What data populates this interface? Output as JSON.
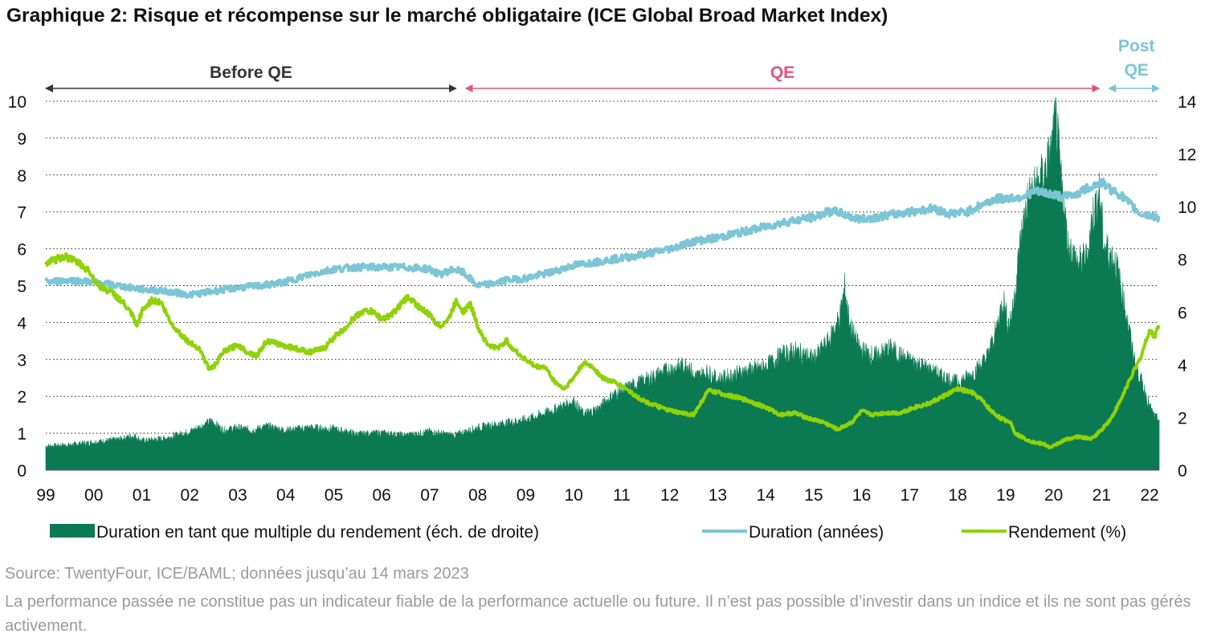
{
  "title": "Graphique 2: Risque et récompense sur le marché obligataire (ICE Global Broad Market Index)",
  "source": "Source: TwentyFour, ICE/BAML; données jusqu’au 14 mars 2023",
  "disclaimer": "La performance passée ne constitue pas un indicateur fiable de la performance actuelle ou future. Il n’est pas possible d’investir dans un indice et ils ne sont pas gérés activement.",
  "colors": {
    "area": "#0b7a52",
    "duration": "#7cc5d6",
    "yield": "#8fd20a",
    "before": "#333333",
    "qe": "#e2517c",
    "post": "#7cc5d6"
  },
  "phases": [
    {
      "label": "Before QE",
      "color": "#333333",
      "from": 1999.0,
      "to": 2007.55
    },
    {
      "label": "QE",
      "color": "#e2517c",
      "from": 2007.75,
      "to": 2020.95
    },
    {
      "label": "Post QE",
      "color": "#7cc5d6",
      "from": 2021.15,
      "to": 2022.2
    }
  ],
  "chart_data": {
    "type": "line",
    "x_tick_labels": [
      "99",
      "00",
      "01",
      "02",
      "03",
      "04",
      "05",
      "06",
      "07",
      "08",
      "09",
      "10",
      "11",
      "12",
      "13",
      "14",
      "15",
      "16",
      "17",
      "18",
      "19",
      "20",
      "21",
      "22"
    ],
    "x_tick_values": [
      1999,
      2000,
      2001,
      2002,
      2003,
      2004,
      2005,
      2006,
      2007,
      2008,
      2009,
      2010,
      2011,
      2012,
      2013,
      2014,
      2015,
      2016,
      2017,
      2018,
      2019,
      2020,
      2021,
      2022
    ],
    "xlim": [
      1999.0,
      2022.2
    ],
    "y_left": {
      "ylim": [
        0,
        10
      ],
      "ticks": [
        0,
        1,
        2,
        3,
        4,
        5,
        6,
        7,
        8,
        9,
        10
      ]
    },
    "y_right": {
      "ylim": [
        0,
        14
      ],
      "ticks": [
        0,
        2,
        4,
        6,
        8,
        10,
        12,
        14
      ]
    },
    "grid": "horizontal dotted",
    "legend_position": "bottom",
    "series": [
      {
        "name": "Duration en tant que multiple du rendement (éch. de droite)",
        "type": "area",
        "axis": "right",
        "points": [
          [
            1999.0,
            0.9
          ],
          [
            1999.5,
            0.95
          ],
          [
            2000.0,
            1.05
          ],
          [
            2000.5,
            1.15
          ],
          [
            2000.85,
            1.3
          ],
          [
            2001.0,
            1.1
          ],
          [
            2001.5,
            1.2
          ],
          [
            2002.0,
            1.45
          ],
          [
            2002.3,
            1.7
          ],
          [
            2002.45,
            1.85
          ],
          [
            2002.7,
            1.5
          ],
          [
            2003.0,
            1.6
          ],
          [
            2003.3,
            1.5
          ],
          [
            2003.6,
            1.65
          ],
          [
            2004.0,
            1.5
          ],
          [
            2004.5,
            1.6
          ],
          [
            2005.0,
            1.55
          ],
          [
            2005.5,
            1.35
          ],
          [
            2006.0,
            1.4
          ],
          [
            2006.5,
            1.3
          ],
          [
            2007.0,
            1.45
          ],
          [
            2007.5,
            1.3
          ],
          [
            2008.0,
            1.6
          ],
          [
            2008.5,
            1.75
          ],
          [
            2009.0,
            1.9
          ],
          [
            2009.5,
            2.2
          ],
          [
            2010.0,
            2.6
          ],
          [
            2010.2,
            2.1
          ],
          [
            2010.5,
            2.3
          ],
          [
            2010.8,
            2.8
          ],
          [
            2011.0,
            3.0
          ],
          [
            2011.5,
            3.4
          ],
          [
            2012.0,
            3.8
          ],
          [
            2012.4,
            4.0
          ],
          [
            2012.5,
            3.5
          ],
          [
            2012.8,
            3.7
          ],
          [
            2013.0,
            3.4
          ],
          [
            2013.5,
            3.7
          ],
          [
            2014.0,
            3.9
          ],
          [
            2014.3,
            4.3
          ],
          [
            2014.6,
            4.5
          ],
          [
            2015.0,
            4.2
          ],
          [
            2015.3,
            4.8
          ],
          [
            2015.55,
            5.8
          ],
          [
            2015.65,
            6.9
          ],
          [
            2015.75,
            5.5
          ],
          [
            2015.9,
            4.8
          ],
          [
            2016.0,
            4.5
          ],
          [
            2016.3,
            4.3
          ],
          [
            2016.6,
            4.6
          ],
          [
            2016.9,
            4.2
          ],
          [
            2017.2,
            4.0
          ],
          [
            2017.6,
            3.6
          ],
          [
            2018.0,
            3.3
          ],
          [
            2018.3,
            3.6
          ],
          [
            2018.6,
            4.2
          ],
          [
            2018.8,
            5.2
          ],
          [
            2018.95,
            6.5
          ],
          [
            2019.05,
            5.5
          ],
          [
            2019.15,
            6.0
          ],
          [
            2019.3,
            8.5
          ],
          [
            2019.45,
            10.2
          ],
          [
            2019.6,
            10.6
          ],
          [
            2019.8,
            11.2
          ],
          [
            2019.95,
            12.0
          ],
          [
            2020.05,
            13.3
          ],
          [
            2020.15,
            11.0
          ],
          [
            2020.3,
            8.5
          ],
          [
            2020.5,
            7.8
          ],
          [
            2020.7,
            8.0
          ],
          [
            2020.8,
            9.5
          ],
          [
            2020.95,
            10.5
          ],
          [
            2021.05,
            8.5
          ],
          [
            2021.3,
            7.8
          ],
          [
            2021.5,
            6.0
          ],
          [
            2021.7,
            4.0
          ],
          [
            2021.9,
            3.0
          ],
          [
            2022.0,
            2.4
          ],
          [
            2022.1,
            2.0
          ],
          [
            2022.2,
            1.9
          ]
        ]
      },
      {
        "name": "Duration (années)",
        "type": "line",
        "axis": "left",
        "points": [
          [
            1999.0,
            5.1
          ],
          [
            1999.5,
            5.15
          ],
          [
            2000.0,
            5.1
          ],
          [
            2000.5,
            5.0
          ],
          [
            2001.0,
            4.9
          ],
          [
            2001.5,
            4.85
          ],
          [
            2002.0,
            4.75
          ],
          [
            2002.5,
            4.85
          ],
          [
            2003.0,
            4.95
          ],
          [
            2003.5,
            5.0
          ],
          [
            2004.0,
            5.1
          ],
          [
            2004.5,
            5.3
          ],
          [
            2005.0,
            5.45
          ],
          [
            2005.5,
            5.5
          ],
          [
            2006.0,
            5.5
          ],
          [
            2006.5,
            5.5
          ],
          [
            2007.0,
            5.45
          ],
          [
            2007.2,
            5.3
          ],
          [
            2007.5,
            5.45
          ],
          [
            2007.7,
            5.35
          ],
          [
            2008.0,
            5.0
          ],
          [
            2008.3,
            5.05
          ],
          [
            2008.6,
            5.15
          ],
          [
            2009.0,
            5.2
          ],
          [
            2009.5,
            5.35
          ],
          [
            2010.0,
            5.55
          ],
          [
            2010.5,
            5.65
          ],
          [
            2011.0,
            5.75
          ],
          [
            2011.5,
            5.85
          ],
          [
            2012.0,
            6.0
          ],
          [
            2012.5,
            6.2
          ],
          [
            2013.0,
            6.3
          ],
          [
            2013.5,
            6.45
          ],
          [
            2014.0,
            6.6
          ],
          [
            2014.5,
            6.75
          ],
          [
            2015.0,
            6.85
          ],
          [
            2015.3,
            7.0
          ],
          [
            2015.5,
            7.0
          ],
          [
            2015.8,
            6.85
          ],
          [
            2016.0,
            6.8
          ],
          [
            2016.5,
            6.9
          ],
          [
            2017.0,
            7.0
          ],
          [
            2017.5,
            7.1
          ],
          [
            2017.8,
            6.95
          ],
          [
            2018.2,
            7.0
          ],
          [
            2018.5,
            7.2
          ],
          [
            2018.8,
            7.35
          ],
          [
            2019.3,
            7.4
          ],
          [
            2019.6,
            7.55
          ],
          [
            2019.9,
            7.5
          ],
          [
            2020.2,
            7.4
          ],
          [
            2020.5,
            7.5
          ],
          [
            2020.8,
            7.7
          ],
          [
            2021.0,
            7.8
          ],
          [
            2021.2,
            7.6
          ],
          [
            2021.4,
            7.45
          ],
          [
            2021.6,
            7.2
          ],
          [
            2021.8,
            6.95
          ],
          [
            2022.0,
            6.9
          ],
          [
            2022.2,
            6.85
          ]
        ]
      },
      {
        "name": "Rendement (%)",
        "type": "line",
        "axis": "left",
        "points": [
          [
            1999.0,
            5.6
          ],
          [
            1999.2,
            5.7
          ],
          [
            1999.4,
            5.8
          ],
          [
            1999.7,
            5.6
          ],
          [
            1999.9,
            5.4
          ],
          [
            2000.1,
            5.0
          ],
          [
            2000.4,
            4.8
          ],
          [
            2000.6,
            4.55
          ],
          [
            2000.8,
            4.2
          ],
          [
            2000.9,
            3.9
          ],
          [
            2001.0,
            4.3
          ],
          [
            2001.2,
            4.6
          ],
          [
            2001.4,
            4.55
          ],
          [
            2001.6,
            4.0
          ],
          [
            2001.8,
            3.7
          ],
          [
            2002.0,
            3.45
          ],
          [
            2002.2,
            3.3
          ],
          [
            2002.4,
            2.75
          ],
          [
            2002.5,
            2.8
          ],
          [
            2002.7,
            3.2
          ],
          [
            2003.0,
            3.4
          ],
          [
            2003.2,
            3.2
          ],
          [
            2003.4,
            3.1
          ],
          [
            2003.6,
            3.5
          ],
          [
            2003.9,
            3.4
          ],
          [
            2004.2,
            3.3
          ],
          [
            2004.5,
            3.2
          ],
          [
            2004.8,
            3.3
          ],
          [
            2005.0,
            3.6
          ],
          [
            2005.2,
            3.8
          ],
          [
            2005.4,
            4.1
          ],
          [
            2005.6,
            4.3
          ],
          [
            2005.8,
            4.3
          ],
          [
            2006.0,
            4.1
          ],
          [
            2006.2,
            4.2
          ],
          [
            2006.4,
            4.5
          ],
          [
            2006.55,
            4.7
          ],
          [
            2006.8,
            4.4
          ],
          [
            2007.0,
            4.2
          ],
          [
            2007.2,
            3.9
          ],
          [
            2007.4,
            4.1
          ],
          [
            2007.55,
            4.6
          ],
          [
            2007.7,
            4.3
          ],
          [
            2007.85,
            4.5
          ],
          [
            2008.0,
            3.9
          ],
          [
            2008.2,
            3.4
          ],
          [
            2008.4,
            3.3
          ],
          [
            2008.6,
            3.5
          ],
          [
            2008.8,
            3.2
          ],
          [
            2009.0,
            3.0
          ],
          [
            2009.2,
            2.8
          ],
          [
            2009.4,
            2.8
          ],
          [
            2009.6,
            2.4
          ],
          [
            2009.8,
            2.2
          ],
          [
            2010.0,
            2.5
          ],
          [
            2010.2,
            2.9
          ],
          [
            2010.4,
            2.8
          ],
          [
            2010.6,
            2.5
          ],
          [
            2010.9,
            2.35
          ],
          [
            2011.1,
            2.2
          ],
          [
            2011.3,
            2.0
          ],
          [
            2011.5,
            1.85
          ],
          [
            2011.7,
            1.75
          ],
          [
            2011.9,
            1.65
          ],
          [
            2012.2,
            1.55
          ],
          [
            2012.5,
            1.5
          ],
          [
            2012.8,
            2.15
          ],
          [
            2013.0,
            2.1
          ],
          [
            2013.3,
            2.0
          ],
          [
            2013.6,
            1.9
          ],
          [
            2014.0,
            1.7
          ],
          [
            2014.3,
            1.5
          ],
          [
            2014.6,
            1.55
          ],
          [
            2014.9,
            1.4
          ],
          [
            2015.2,
            1.3
          ],
          [
            2015.5,
            1.1
          ],
          [
            2015.8,
            1.3
          ],
          [
            2016.0,
            1.6
          ],
          [
            2016.2,
            1.5
          ],
          [
            2016.5,
            1.55
          ],
          [
            2016.8,
            1.55
          ],
          [
            2017.1,
            1.7
          ],
          [
            2017.4,
            1.8
          ],
          [
            2017.7,
            2.0
          ],
          [
            2018.0,
            2.2
          ],
          [
            2018.3,
            2.1
          ],
          [
            2018.5,
            1.9
          ],
          [
            2018.7,
            1.6
          ],
          [
            2018.9,
            1.4
          ],
          [
            2019.1,
            1.3
          ],
          [
            2019.2,
            1.0
          ],
          [
            2019.4,
            0.85
          ],
          [
            2019.6,
            0.75
          ],
          [
            2019.8,
            0.7
          ],
          [
            2019.95,
            0.6
          ],
          [
            2020.05,
            0.7
          ],
          [
            2020.3,
            0.85
          ],
          [
            2020.5,
            0.9
          ],
          [
            2020.8,
            0.85
          ],
          [
            2021.0,
            1.1
          ],
          [
            2021.2,
            1.4
          ],
          [
            2021.4,
            1.9
          ],
          [
            2021.6,
            2.5
          ],
          [
            2021.8,
            3.0
          ],
          [
            2021.9,
            3.4
          ],
          [
            2022.0,
            3.8
          ],
          [
            2022.1,
            3.6
          ],
          [
            2022.2,
            4.0
          ]
        ]
      }
    ]
  }
}
